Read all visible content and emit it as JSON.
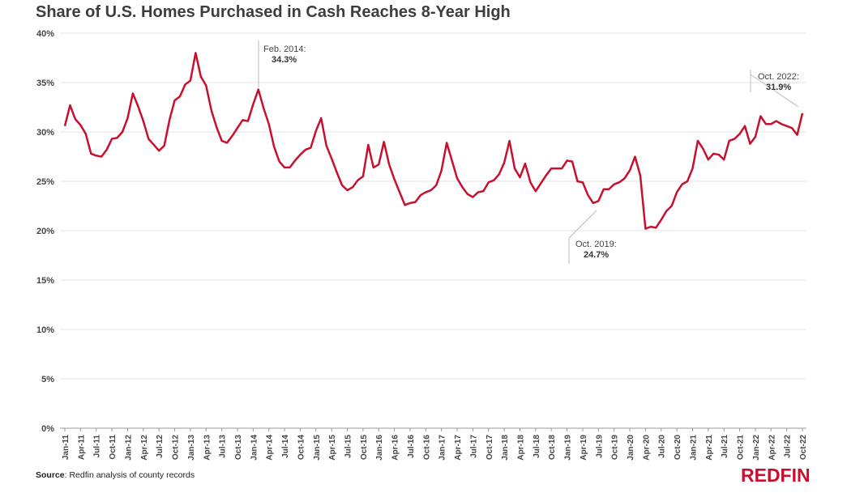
{
  "chart_data": {
    "type": "line",
    "title": "Share of U.S. Homes Purchased in Cash Reaches 8-Year High",
    "xlabel": "",
    "ylabel": "",
    "ylim": [
      0,
      40
    ],
    "yticks": [
      "0%",
      "5%",
      "10%",
      "15%",
      "20%",
      "25%",
      "30%",
      "35%",
      "40%"
    ],
    "ytick_values": [
      0,
      5,
      10,
      15,
      20,
      25,
      30,
      35,
      40
    ],
    "xtick_labels": [
      "Jan-11",
      "Apr-11",
      "Jul-11",
      "Oct-11",
      "Jan-12",
      "Apr-12",
      "Jul-12",
      "Oct-12",
      "Jan-13",
      "Apr-13",
      "Jul-13",
      "Oct-13",
      "Jan-14",
      "Apr-14",
      "Jul-14",
      "Oct-14",
      "Jan-15",
      "Apr-15",
      "Jul-15",
      "Oct-15",
      "Jan-16",
      "Apr-16",
      "Jul-16",
      "Oct-16",
      "Jan-17",
      "Apr-17",
      "Jul-17",
      "Oct-17",
      "Jan-18",
      "Apr-18",
      "Jul-18",
      "Oct-18",
      "Jan-19",
      "Apr-19",
      "Jul-19",
      "Oct-19",
      "Jan-20",
      "Apr-20",
      "Jul-20",
      "Oct-20",
      "Jan-21",
      "Apr-21",
      "Jul-21",
      "Oct-21",
      "Jan-22",
      "Apr-22",
      "Jul-22",
      "Oct-22"
    ],
    "grid": true,
    "line_color": "#c8102e",
    "series": [
      {
        "values": [
          30.6,
          32.7,
          31.3,
          30.7,
          29.8,
          27.8,
          27.6,
          27.5,
          28.2,
          29.3,
          29.4,
          30.0,
          31.4,
          33.9,
          32.6,
          31.1,
          29.3,
          28.7,
          28.1,
          28.6,
          31.2,
          33.2,
          33.6,
          34.8,
          35.2,
          38.0,
          35.6,
          34.7,
          32.2,
          30.5,
          29.1,
          28.9,
          29.6,
          30.4,
          31.2,
          31.1,
          32.8,
          34.3,
          32.4,
          30.8,
          28.5,
          27.0,
          26.4,
          26.4,
          27.1,
          27.7,
          28.2,
          28.4,
          30.1,
          31.4,
          28.6,
          27.3,
          25.9,
          24.6,
          24.1,
          24.4,
          25.1,
          25.5,
          28.7,
          26.4,
          26.7,
          29.0,
          26.7,
          25.2,
          23.9,
          22.6,
          22.8,
          22.9,
          23.6,
          23.9,
          24.1,
          24.6,
          26.1,
          28.9,
          27.1,
          25.3,
          24.4,
          23.7,
          23.4,
          23.9,
          24.0,
          24.9,
          25.1,
          25.7,
          26.9,
          29.1,
          26.3,
          25.4,
          26.8,
          24.9,
          24.0,
          24.8,
          25.6,
          26.3,
          26.3,
          26.3,
          27.1,
          27.0,
          25.0,
          24.9,
          23.6,
          22.8,
          23.0,
          24.2,
          24.2,
          24.7,
          24.9,
          25.3,
          26.1,
          27.5,
          25.6,
          20.2,
          20.4,
          20.3,
          21.1,
          22.0,
          22.5,
          23.9,
          24.7,
          25.0,
          26.3,
          29.1,
          28.3,
          27.2,
          27.8,
          27.7,
          27.2,
          29.1,
          29.3,
          29.8,
          30.6,
          28.8,
          29.5,
          31.6,
          30.8,
          30.8,
          31.1,
          30.8,
          30.6,
          30.4,
          29.7,
          31.9
        ]
      }
    ],
    "annotations": [
      {
        "label": "Feb. 2014:",
        "value": "34.3%"
      },
      {
        "label": "Oct. 2019:",
        "value": "24.7%"
      },
      {
        "label": "Oct. 2022:",
        "value": "31.9%"
      }
    ]
  },
  "footer": {
    "source_label": "Source",
    "source_text": ": Redfin analysis of county records",
    "brand": "REDFIN"
  }
}
